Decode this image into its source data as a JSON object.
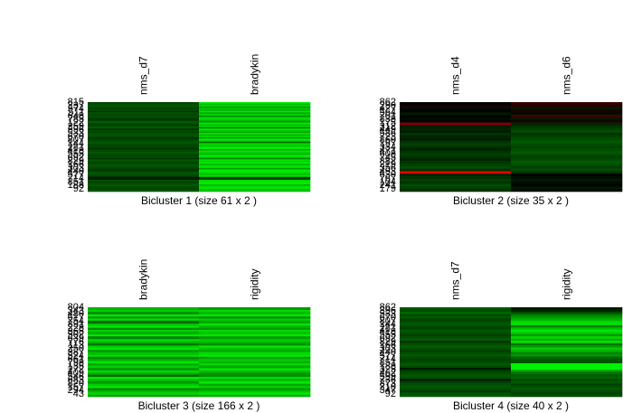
{
  "chart_data": [
    {
      "type": "heatmap",
      "title": "Bicluster  1  (size  61 x 2 )",
      "columns": [
        "nms_d7",
        "bradykin"
      ],
      "n_rows": 61,
      "row_labels_visible": [
        "815",
        "92"
      ],
      "column_pattern": [
        {
          "name": "nms_d7",
          "values": [
            0.25,
            0.3,
            0.35,
            0.3,
            0.25,
            0.3,
            0.2,
            0.35,
            0.25,
            0.3,
            0.3,
            0.2,
            0.25,
            0.35,
            0.3,
            0.25,
            0.3,
            0.35,
            0.2,
            0.3,
            0.25,
            0.3,
            0.35,
            0.3,
            0.2,
            0.25,
            0.3,
            0.35,
            0.3,
            0.25,
            0.3,
            0.2,
            0.25,
            0.3,
            0.35,
            0.3,
            0.25,
            0.3,
            0.2,
            0.35,
            0.3,
            0.25,
            0.3,
            0.35,
            0.3,
            0.25,
            0.2,
            0.3,
            0.35,
            0.3,
            0.25,
            0.1,
            0.15,
            0.3,
            0.25,
            0.3,
            0.35,
            0.3,
            0.25,
            0.3,
            0.35
          ]
        },
        {
          "name": "bradykin",
          "values": [
            0.9,
            0.75,
            0.85,
            0.6,
            0.8,
            0.7,
            0.9,
            0.65,
            0.85,
            0.5,
            0.8,
            0.9,
            0.7,
            0.6,
            0.95,
            0.75,
            0.85,
            0.5,
            0.9,
            0.8,
            0.65,
            0.9,
            0.7,
            0.85,
            0.6,
            0.95,
            0.8,
            0.4,
            0.9,
            0.75,
            0.85,
            0.95,
            0.6,
            0.9,
            0.8,
            0.7,
            0.95,
            0.85,
            0.5,
            0.9,
            0.8,
            0.95,
            0.7,
            0.9,
            0.85,
            0.6,
            0.95,
            0.9,
            0.8,
            0.75,
            0.9,
            0.2,
            0.3,
            0.85,
            0.9,
            0.95,
            0.7,
            0.85,
            0.9,
            0.8,
            0.75
          ]
        }
      ]
    },
    {
      "type": "heatmap",
      "title": "Bicluster  2  (size  35 x 2 )",
      "columns": [
        "nms_d4",
        "nms_d6"
      ],
      "n_rows": 35,
      "row_labels_visible": [
        "862",
        "179"
      ],
      "column_pattern": [
        {
          "name": "nms_d4",
          "values": [
            0.0,
            -0.1,
            0.05,
            0.0,
            0.1,
            0.0,
            0.05,
            0.0,
            -0.5,
            0.1,
            0.15,
            0.1,
            0.2,
            0.15,
            0.1,
            0.2,
            0.25,
            0.2,
            0.15,
            0.2,
            0.25,
            0.2,
            0.15,
            0.2,
            0.25,
            0.3,
            0.2,
            -0.9,
            0.15,
            0.2,
            0.25,
            0.2,
            0.3,
            0.25,
            0.2
          ]
        },
        {
          "name": "nms_d6",
          "values": [
            -0.2,
            -0.15,
            0.1,
            -0.1,
            0.05,
            -0.25,
            0.1,
            -0.1,
            0.15,
            0.2,
            0.25,
            0.3,
            0.2,
            0.25,
            0.3,
            0.35,
            0.3,
            0.25,
            0.3,
            0.35,
            0.3,
            0.25,
            0.3,
            0.35,
            0.3,
            0.25,
            0.3,
            0.2,
            0.0,
            0.05,
            0.1,
            0.05,
            0.0,
            0.1,
            0.05
          ]
        }
      ]
    },
    {
      "type": "heatmap",
      "title": "Bicluster  3  (size  166 x 2 )",
      "columns": [
        "bradykin",
        "rigidity"
      ],
      "n_rows": 166,
      "row_labels_visible": [
        "804",
        "43"
      ],
      "column_pattern": [
        {
          "name": "bradykin",
          "values": [
            0.7,
            0.8,
            0.5,
            0.9,
            0.6,
            0.85,
            0.4,
            0.75,
            0.9,
            0.55,
            0.8,
            0.65,
            0.9,
            0.5,
            0.85,
            0.7,
            0.45,
            0.8,
            0.9,
            0.6,
            0.75,
            0.85,
            0.5,
            0.7,
            0.9,
            0.65,
            0.8,
            0.55,
            0.85,
            0.7,
            0.4,
            0.9,
            0.75,
            0.6,
            0.8,
            0.9,
            0.5,
            0.7,
            0.85,
            0.65
          ]
        },
        {
          "name": "rigidity",
          "values": [
            0.6,
            0.85,
            0.7,
            0.9,
            0.55,
            0.8,
            0.65,
            0.9,
            0.7,
            0.6,
            0.85,
            0.75,
            0.9,
            0.6,
            0.8,
            0.7,
            0.55,
            0.9,
            0.75,
            0.65,
            0.85,
            0.9,
            0.6,
            0.8,
            0.7,
            0.85,
            0.65,
            0.9,
            0.75,
            0.6,
            0.55,
            0.85,
            0.7,
            0.9,
            0.65,
            0.8,
            0.6,
            0.75,
            0.9,
            0.7
          ]
        }
      ]
    },
    {
      "type": "heatmap",
      "title": "Bicluster  4  (size  40 x 2 )",
      "columns": [
        "nms_d7",
        "rigidity"
      ],
      "n_rows": 40,
      "row_labels_visible": [
        "862",
        "92"
      ],
      "column_pattern": [
        {
          "name": "nms_d7",
          "values": [
            0.35,
            0.3,
            0.4,
            0.3,
            0.35,
            0.25,
            0.3,
            0.35,
            0.3,
            0.25,
            0.35,
            0.3,
            0.25,
            0.3,
            0.35,
            0.2,
            0.3,
            0.35,
            0.3,
            0.25,
            0.3,
            0.35,
            0.3,
            0.25,
            0.3,
            0.35,
            0.3,
            0.1,
            0.25,
            0.3,
            0.35,
            0.3,
            0.1,
            0.25,
            0.3,
            0.35,
            0.3,
            0.25,
            0.3,
            0.35
          ]
        },
        {
          "name": "rigidity",
          "values": [
            0.1,
            0.15,
            0.3,
            0.5,
            0.6,
            0.7,
            0.85,
            0.9,
            0.5,
            0.75,
            0.9,
            0.8,
            0.6,
            0.85,
            0.7,
            0.9,
            0.45,
            0.6,
            0.8,
            0.7,
            0.5,
            0.6,
            0.4,
            0.35,
            0.3,
            0.95,
            0.95,
            0.95,
            0.6,
            0.45,
            0.35,
            0.4,
            0.3,
            0.35,
            0.25,
            0.3,
            0.35,
            0.3,
            0.25,
            0.3
          ]
        }
      ]
    }
  ]
}
